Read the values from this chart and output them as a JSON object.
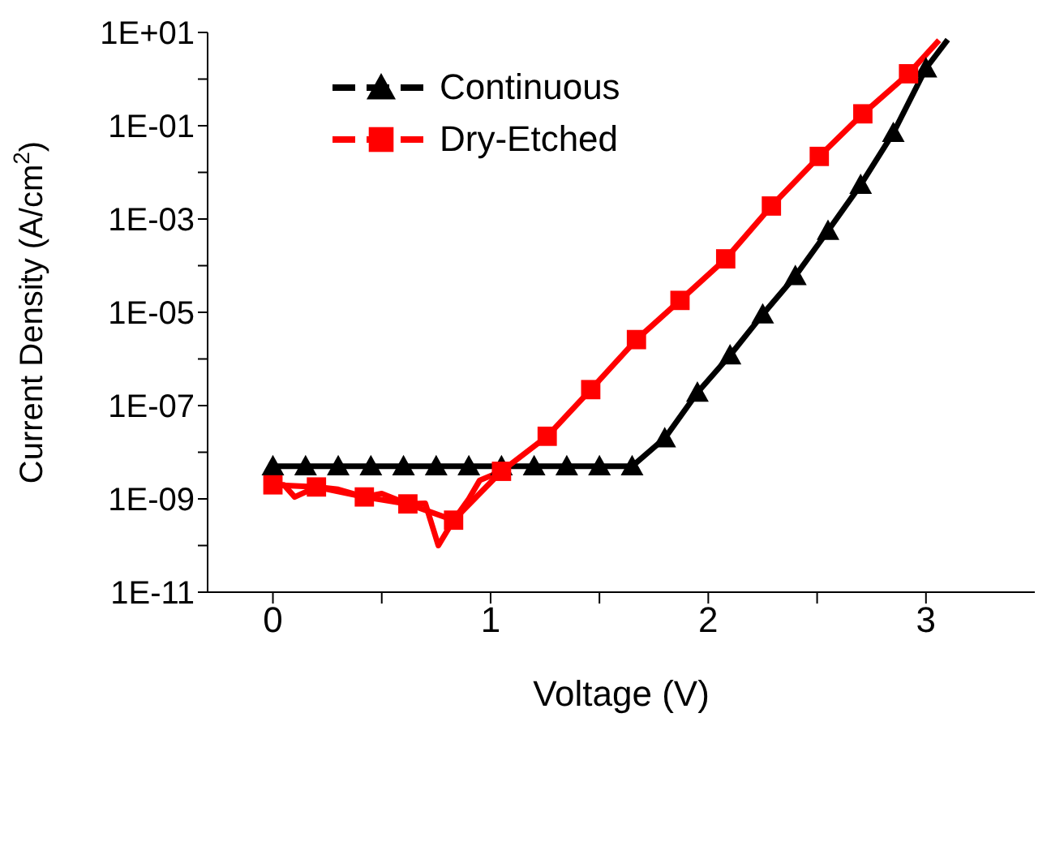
{
  "chart_data": {
    "type": "line",
    "xlabel": "Voltage (V)",
    "ylabel": "Current Density (A/cm$^{2}$)",
    "log": "y",
    "legend": "top left",
    "line_style": "solid",
    "xlim": [
      -0.3,
      3.5
    ],
    "xticks": [
      0,
      {
        "value": 0.5,
        "label": null
      },
      1,
      {
        "value": 1.5,
        "label": null
      },
      2,
      {
        "value": 2.5,
        "label": null
      },
      3
    ],
    "ylim": [
      1e-11,
      10
    ],
    "yticks": [
      {
        "value": 1e-11,
        "label": "1E-11"
      },
      {
        "value": 1e-10,
        "label": null
      },
      {
        "value": 1e-09,
        "label": "1E-09"
      },
      {
        "value": 1e-08,
        "label": null
      },
      {
        "value": 1e-07,
        "label": "1E-07"
      },
      {
        "value": 1e-06,
        "label": null
      },
      {
        "value": 1e-05,
        "label": "1E-05"
      },
      {
        "value": 0.0001,
        "label": null
      },
      {
        "value": 0.001,
        "label": "1E-03"
      },
      {
        "value": 0.01,
        "label": null
      },
      {
        "value": 0.1,
        "label": "1E-01"
      },
      {
        "value": 1,
        "label": null
      },
      {
        "value": 10,
        "label": "1E+01"
      }
    ],
    "series": [
      {
        "name": "Continuous",
        "color": "#000000",
        "marker": "triangle",
        "x": [
          0,
          0.15,
          0.3,
          0.45,
          0.6,
          0.75,
          0.9,
          1.05,
          1.2,
          1.35,
          1.5,
          1.65,
          1.8,
          1.95,
          2.1,
          2.25,
          2.4,
          2.55,
          2.7,
          2.85,
          3.0
        ],
        "values": [
          5e-09,
          5e-09,
          5e-09,
          5e-09,
          5e-09,
          5e-09,
          5e-09,
          5e-09,
          5e-09,
          5e-09,
          5e-09,
          5e-09,
          2e-08,
          1.9e-07,
          1.2e-06,
          9e-06,
          6e-05,
          0.00056,
          0.0054,
          0.07,
          1.7
        ]
      },
      {
        "name": "Dry-Etched",
        "color": "#ff0000",
        "marker": "square",
        "x": [
          0,
          0.2,
          0.42,
          0.62,
          0.83,
          1.05,
          1.26,
          1.46,
          1.67,
          1.87,
          2.08,
          2.29,
          2.51,
          2.71,
          2.92
        ],
        "values": [
          2e-09,
          1.8e-09,
          1.1e-09,
          7.8e-10,
          3.5e-10,
          3.9e-09,
          2.2e-08,
          2.2e-07,
          2.6e-06,
          1.8e-05,
          0.00014,
          0.0019,
          0.022,
          0.18,
          1.3
        ]
      },
      {
        "type": "line",
        "color": "#ff0000",
        "marker": "none",
        "x": [
          0,
          0.05,
          0.1,
          0.2,
          0.3,
          0.42,
          0.5,
          0.62,
          0.7,
          0.76,
          0.83,
          0.9,
          0.95,
          1.05
        ],
        "values": [
          2e-09,
          2e-09,
          1.1e-09,
          1.8e-09,
          1.6e-09,
          1.1e-09,
          1.3e-09,
          7.8e-10,
          8e-10,
          1e-10,
          3.5e-10,
          1e-09,
          2.5e-09,
          3.9e-09
        ]
      },
      {
        "type": "line",
        "color": "#ff0000",
        "marker": "none",
        "x": [
          2.92,
          3.06
        ],
        "values": [
          1.3,
          6.8
        ]
      },
      {
        "type": "line",
        "color": "#000000",
        "marker": "none",
        "x": [
          3.0,
          3.1
        ],
        "values": [
          1.7,
          7
        ]
      }
    ]
  }
}
